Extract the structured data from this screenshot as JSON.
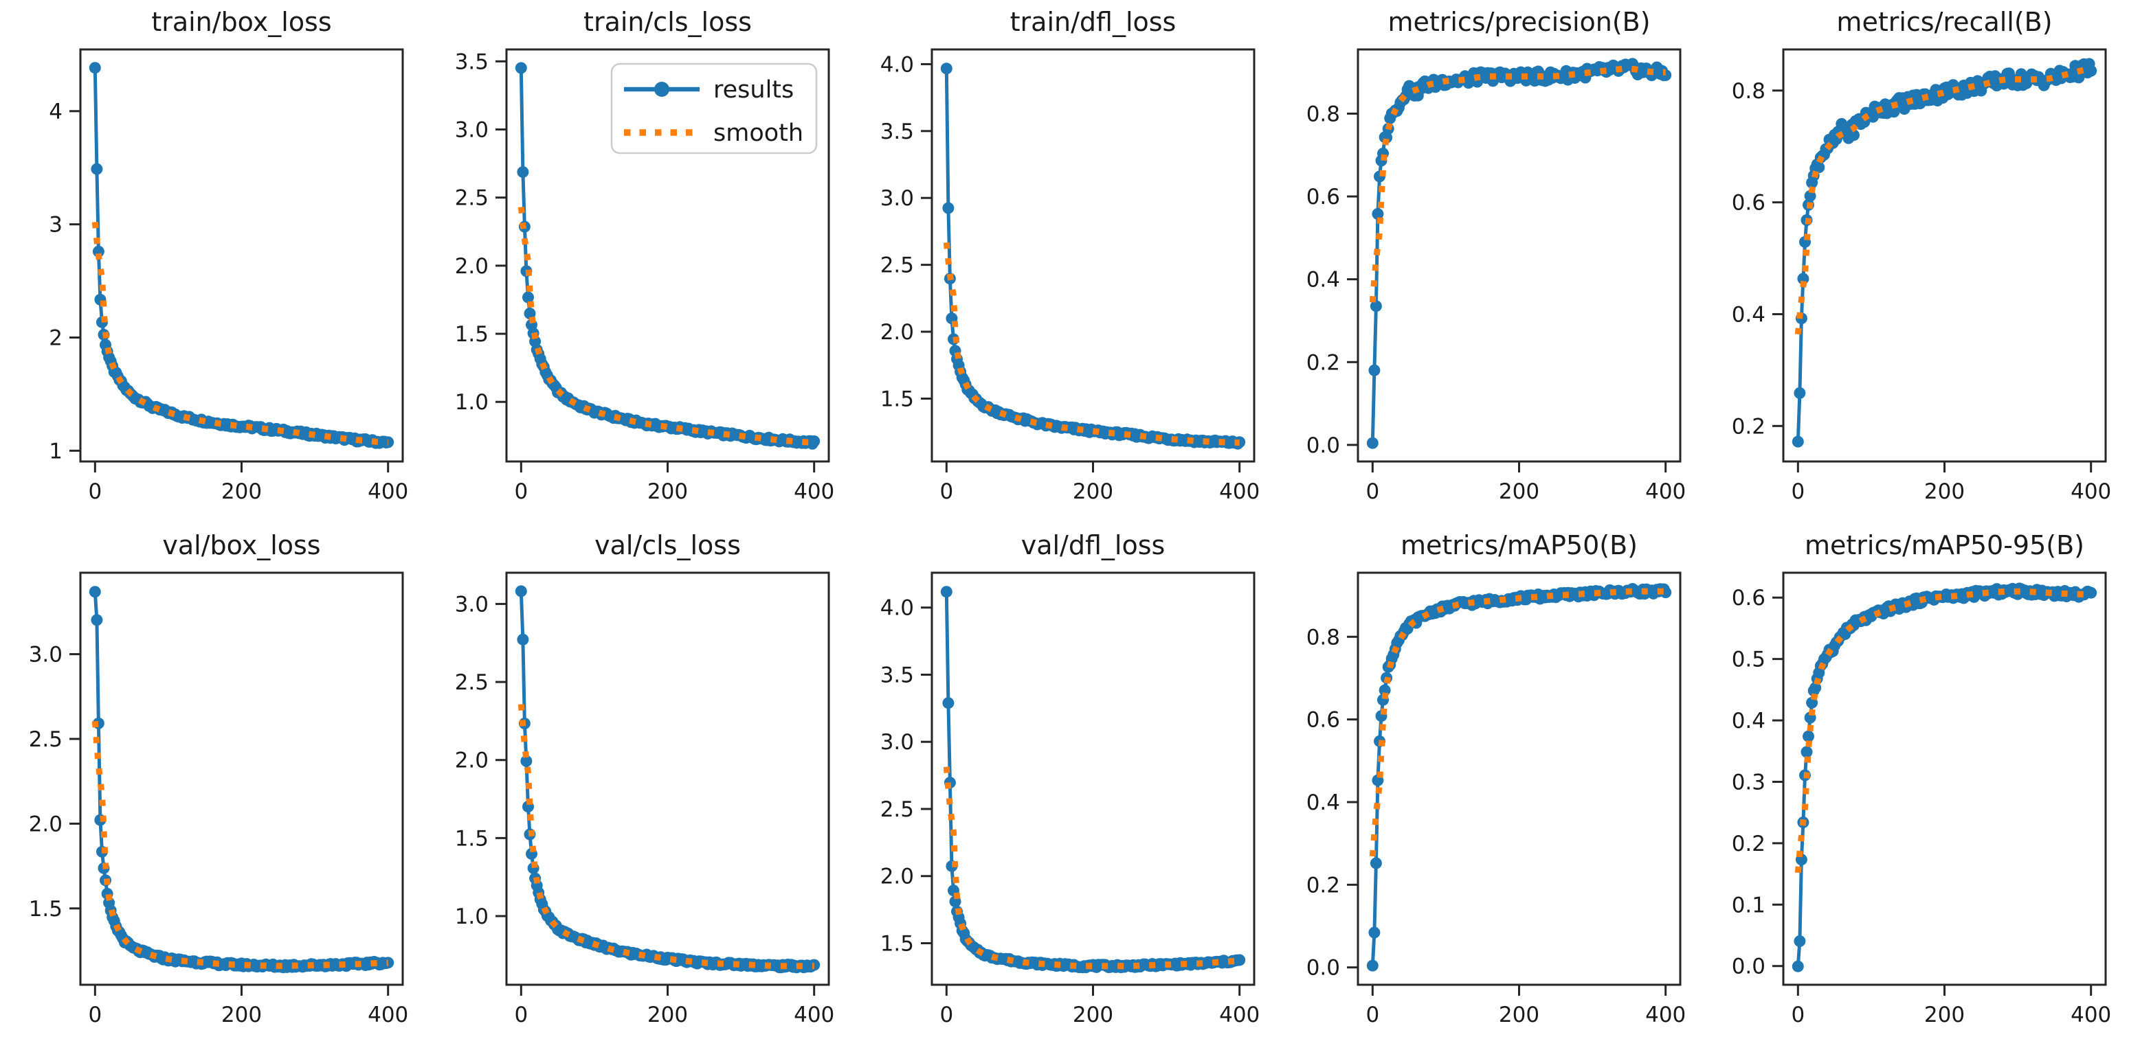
{
  "figure": {
    "background": "#ffffff",
    "text_color": "#1a1a1a",
    "frame_color": "#262626",
    "colors": {
      "results": "#1f77b4",
      "smooth": "#ff7f0e"
    },
    "legend": {
      "entries": [
        "results",
        "smooth"
      ],
      "shown_on": "train/cls_loss"
    }
  },
  "chart_data": [
    {
      "type": "line",
      "title": "train/box_loss",
      "legend": false,
      "noise": 0.015,
      "xlim": [
        -20,
        420
      ],
      "ylim": [
        0.905,
        4.545
      ],
      "xticks": [
        "0",
        "200",
        "400"
      ],
      "yticks": [
        "1",
        "2",
        "3",
        "4"
      ],
      "x": [
        0,
        2,
        4,
        6,
        8,
        10,
        13,
        16,
        20,
        25,
        30,
        40,
        50,
        60,
        80,
        100,
        120,
        150,
        180,
        210,
        250,
        300,
        350,
        400
      ],
      "results": [
        4.38,
        3.62,
        2.95,
        2.45,
        2.25,
        2.1,
        1.98,
        1.9,
        1.8,
        1.72,
        1.66,
        1.56,
        1.49,
        1.45,
        1.38,
        1.34,
        1.3,
        1.26,
        1.23,
        1.21,
        1.18,
        1.14,
        1.1,
        1.07
      ],
      "smooth": "derived: moving average of results"
    },
    {
      "type": "line",
      "title": "train/cls_loss",
      "legend": true,
      "noise": 0.012,
      "xlim": [
        -20,
        420
      ],
      "ylim": [
        0.5625,
        3.5875
      ],
      "xticks": [
        "0",
        "200",
        "400"
      ],
      "yticks": [
        "1.0",
        "1.5",
        "2.0",
        "2.5",
        "3.0",
        "3.5"
      ],
      "x": [
        0,
        2,
        4,
        6,
        8,
        10,
        13,
        16,
        20,
        25,
        30,
        40,
        50,
        60,
        80,
        100,
        120,
        150,
        180,
        210,
        250,
        300,
        350,
        400
      ],
      "results": [
        3.45,
        2.75,
        2.42,
        2.07,
        1.88,
        1.73,
        1.6,
        1.52,
        1.42,
        1.33,
        1.26,
        1.15,
        1.08,
        1.03,
        0.97,
        0.93,
        0.9,
        0.86,
        0.83,
        0.81,
        0.78,
        0.75,
        0.72,
        0.7
      ],
      "smooth": "derived: moving average of results"
    },
    {
      "type": "line",
      "title": "train/dfl_loss",
      "legend": false,
      "noise": 0.012,
      "xlim": [
        -20,
        420
      ],
      "ylim": [
        1.03,
        4.11
      ],
      "xticks": [
        "0",
        "200",
        "400"
      ],
      "yticks": [
        "1.5",
        "2.0",
        "2.5",
        "3.0",
        "3.5",
        "4.0"
      ],
      "x": [
        0,
        2,
        4,
        6,
        8,
        10,
        13,
        16,
        20,
        25,
        30,
        40,
        50,
        60,
        80,
        100,
        120,
        150,
        180,
        210,
        250,
        300,
        350,
        400
      ],
      "results": [
        3.97,
        3.02,
        2.52,
        2.2,
        2.02,
        1.92,
        1.82,
        1.76,
        1.68,
        1.61,
        1.56,
        1.49,
        1.45,
        1.42,
        1.38,
        1.35,
        1.32,
        1.29,
        1.27,
        1.25,
        1.23,
        1.2,
        1.18,
        1.17
      ],
      "smooth": "derived: moving average of results"
    },
    {
      "type": "line",
      "title": "metrics/precision(B)",
      "legend": false,
      "noise": 0.012,
      "xlim": [
        -20,
        420
      ],
      "ylim": [
        -0.04,
        0.955
      ],
      "xticks": [
        "0",
        "200",
        "400"
      ],
      "yticks": [
        "0.0",
        "0.2",
        "0.4",
        "0.6",
        "0.8"
      ],
      "x": [
        0,
        2,
        4,
        6,
        8,
        10,
        13,
        16,
        20,
        25,
        30,
        35,
        40,
        50,
        60,
        70,
        80,
        100,
        120,
        150,
        180,
        210,
        250,
        300,
        350,
        380,
        400
      ],
      "results": [
        0.005,
        0.17,
        0.23,
        0.5,
        0.6,
        0.66,
        0.7,
        0.73,
        0.76,
        0.79,
        0.82,
        0.81,
        0.84,
        0.86,
        0.85,
        0.87,
        0.87,
        0.88,
        0.88,
        0.89,
        0.89,
        0.89,
        0.89,
        0.9,
        0.91,
        0.9,
        0.9
      ],
      "smooth": "derived: moving average of results"
    },
    {
      "type": "line",
      "title": "metrics/recall(B)",
      "legend": false,
      "noise": 0.012,
      "xlim": [
        -20,
        420
      ],
      "ylim": [
        0.1365,
        0.8735
      ],
      "xticks": [
        "0",
        "200",
        "400"
      ],
      "yticks": [
        "0.2",
        "0.4",
        "0.6",
        "0.8"
      ],
      "x": [
        0,
        2,
        4,
        6,
        8,
        10,
        13,
        16,
        20,
        25,
        30,
        40,
        50,
        60,
        70,
        80,
        100,
        120,
        150,
        180,
        210,
        250,
        280,
        310,
        340,
        370,
        400
      ],
      "results": [
        0.17,
        0.23,
        0.38,
        0.42,
        0.5,
        0.54,
        0.58,
        0.62,
        0.64,
        0.66,
        0.68,
        0.7,
        0.71,
        0.73,
        0.72,
        0.74,
        0.76,
        0.77,
        0.78,
        0.79,
        0.8,
        0.81,
        0.82,
        0.82,
        0.82,
        0.83,
        0.84
      ],
      "smooth": "derived: moving average of results"
    },
    {
      "type": "line",
      "title": "val/box_loss",
      "legend": false,
      "noise": 0.01,
      "xlim": [
        -20,
        420
      ],
      "ylim": [
        1.0495,
        3.4805
      ],
      "xticks": [
        "0",
        "200",
        "400"
      ],
      "yticks": [
        "1.5",
        "2.0",
        "2.5",
        "3.0"
      ],
      "x": [
        0,
        2,
        4,
        6,
        8,
        10,
        13,
        16,
        20,
        25,
        30,
        40,
        50,
        60,
        80,
        100,
        120,
        150,
        180,
        210,
        250,
        300,
        350,
        400
      ],
      "results": [
        3.37,
        3.28,
        2.88,
        2.12,
        1.95,
        1.8,
        1.7,
        1.6,
        1.5,
        1.43,
        1.38,
        1.31,
        1.27,
        1.25,
        1.22,
        1.2,
        1.19,
        1.18,
        1.17,
        1.165,
        1.16,
        1.165,
        1.17,
        1.18
      ],
      "smooth": "derived: moving average of results"
    },
    {
      "type": "line",
      "title": "val/cls_loss",
      "legend": false,
      "noise": 0.01,
      "xlim": [
        -20,
        420
      ],
      "ylim": [
        0.56,
        3.2
      ],
      "xticks": [
        "0",
        "200",
        "400"
      ],
      "yticks": [
        "1.0",
        "1.5",
        "2.0",
        "2.5",
        "3.0"
      ],
      "x": [
        0,
        2,
        4,
        6,
        8,
        10,
        13,
        16,
        20,
        25,
        30,
        40,
        50,
        60,
        80,
        100,
        120,
        150,
        180,
        210,
        250,
        300,
        350,
        400
      ],
      "results": [
        3.08,
        2.87,
        2.37,
        2.02,
        1.97,
        1.62,
        1.47,
        1.32,
        1.22,
        1.12,
        1.05,
        0.97,
        0.92,
        0.89,
        0.85,
        0.82,
        0.79,
        0.76,
        0.74,
        0.72,
        0.7,
        0.69,
        0.68,
        0.68
      ],
      "smooth": "derived: moving average of results"
    },
    {
      "type": "line",
      "title": "val/dfl_loss",
      "legend": false,
      "noise": 0.01,
      "xlim": [
        -20,
        420
      ],
      "ylim": [
        1.1905,
        4.2595
      ],
      "xticks": [
        "0",
        "200",
        "400"
      ],
      "yticks": [
        "1.5",
        "2.0",
        "2.5",
        "3.0",
        "3.5",
        "4.0"
      ],
      "x": [
        0,
        2,
        4,
        6,
        8,
        10,
        13,
        16,
        20,
        25,
        30,
        40,
        50,
        60,
        80,
        100,
        120,
        150,
        180,
        210,
        250,
        300,
        350,
        400
      ],
      "results": [
        4.12,
        3.35,
        3.02,
        2.17,
        2.0,
        1.86,
        1.78,
        1.7,
        1.62,
        1.55,
        1.5,
        1.45,
        1.42,
        1.4,
        1.38,
        1.36,
        1.35,
        1.34,
        1.33,
        1.33,
        1.33,
        1.34,
        1.35,
        1.37
      ],
      "smooth": "derived: moving average of results"
    },
    {
      "type": "line",
      "title": "metrics/mAP50(B)",
      "legend": false,
      "noise": 0.006,
      "xlim": [
        -20,
        420
      ],
      "ylim": [
        -0.042,
        0.955
      ],
      "xticks": [
        "0",
        "200",
        "400"
      ],
      "yticks": [
        "0.0",
        "0.2",
        "0.4",
        "0.6",
        "0.8"
      ],
      "x": [
        0,
        2,
        4,
        6,
        8,
        10,
        13,
        16,
        20,
        25,
        30,
        35,
        40,
        50,
        60,
        70,
        80,
        100,
        120,
        150,
        180,
        210,
        250,
        300,
        350,
        400
      ],
      "results": [
        0.003,
        0.07,
        0.15,
        0.42,
        0.48,
        0.57,
        0.63,
        0.66,
        0.72,
        0.74,
        0.77,
        0.79,
        0.8,
        0.83,
        0.84,
        0.85,
        0.86,
        0.87,
        0.88,
        0.885,
        0.89,
        0.895,
        0.9,
        0.905,
        0.91,
        0.91
      ],
      "smooth": "derived: moving average of results"
    },
    {
      "type": "line",
      "title": "metrics/mAP50-95(B)",
      "legend": false,
      "noise": 0.005,
      "xlim": [
        -20,
        420
      ],
      "ylim": [
        -0.0305,
        0.6405
      ],
      "xticks": [
        "0",
        "200",
        "400"
      ],
      "yticks": [
        "0.0",
        "0.1",
        "0.2",
        "0.3",
        "0.4",
        "0.5",
        "0.6"
      ],
      "x": [
        0,
        1,
        3,
        5,
        7,
        9,
        11,
        14,
        17,
        20,
        25,
        30,
        35,
        40,
        50,
        60,
        70,
        80,
        100,
        120,
        150,
        180,
        210,
        250,
        280,
        310,
        340,
        370,
        400
      ],
      "results": [
        0.0,
        0.02,
        0.05,
        0.19,
        0.23,
        0.3,
        0.34,
        0.37,
        0.41,
        0.44,
        0.46,
        0.48,
        0.5,
        0.51,
        0.52,
        0.54,
        0.55,
        0.56,
        0.57,
        0.58,
        0.59,
        0.6,
        0.602,
        0.607,
        0.61,
        0.61,
        0.608,
        0.606,
        0.605
      ],
      "smooth": "derived: moving average of results"
    }
  ]
}
